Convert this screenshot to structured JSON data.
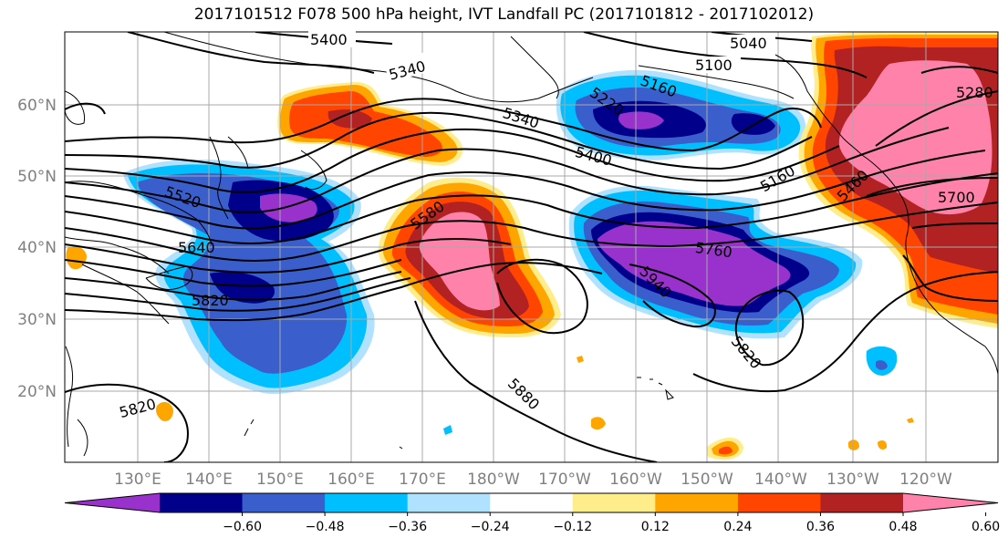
{
  "title": "2017101512 F078 500 hPa height, IVT Landfall PC (2017101812 - 2017102012)",
  "map": {
    "lon_labels": [
      "130°E",
      "140°E",
      "150°E",
      "160°E",
      "170°E",
      "180°W",
      "170°W",
      "160°W",
      "150°W",
      "140°W",
      "130°W",
      "120°W"
    ],
    "lat_labels": [
      "60°N",
      "50°N",
      "40°N",
      "30°N",
      "20°N"
    ],
    "contour_labels": [
      "5400",
      "5340",
      "5040",
      "5100",
      "5160",
      "5220",
      "5340",
      "5400",
      "5160",
      "5280",
      "5460",
      "5700",
      "5520",
      "5580",
      "5640",
      "5760",
      "5820",
      "5940",
      "5820",
      "5880",
      "5820"
    ]
  },
  "colorbar": {
    "tick_labels": [
      "−0.60",
      "−0.48",
      "−0.36",
      "−0.24",
      "−0.12",
      "0.12",
      "0.24",
      "0.36",
      "0.48",
      "0.60"
    ],
    "colors": [
      "#9932cc",
      "#00008b",
      "#3a5fcd",
      "#00bfff",
      "#b0e2ff",
      "#ffffff",
      "#ffec8b",
      "#ffa500",
      "#ff4500",
      "#b22222",
      "#ff82ab"
    ]
  }
}
